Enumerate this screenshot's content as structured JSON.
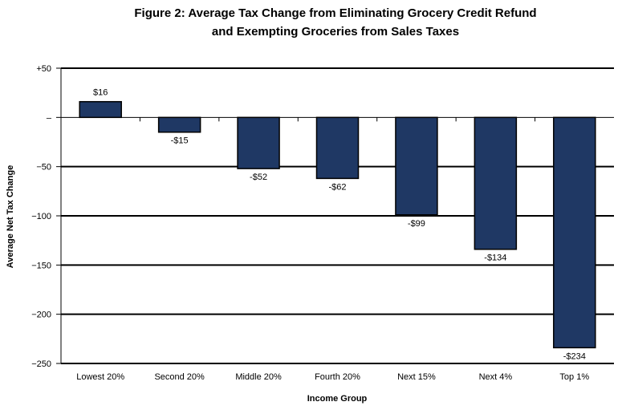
{
  "chart_data": {
    "type": "bar",
    "title_lines": [
      "Figure 2: Average Tax Change from Eliminating Grocery Credit Refund",
      "and Exempting Groceries from Sales Taxes"
    ],
    "xlabel": "Income Group",
    "ylabel": "Average Net Tax Change",
    "categories": [
      "Lowest 20%",
      "Second 20%",
      "Middle 20%",
      "Fourth 20%",
      "Next 15%",
      "Next 4%",
      "Top 1%"
    ],
    "values": [
      16,
      -15,
      -52,
      -62,
      -99,
      -134,
      -234
    ],
    "data_labels": [
      "$16",
      "-$15",
      "-$52",
      "-$62",
      "-$99",
      "-$134",
      "-$234"
    ],
    "ylim": [
      -250,
      50
    ],
    "yticks": [
      50,
      0,
      -50,
      -100,
      -150,
      -200,
      -250
    ],
    "ytick_labels": [
      "+50",
      "–",
      "−50",
      "−100",
      "−150",
      "−200",
      "−250"
    ],
    "grid": true,
    "legend": "none",
    "bar_color": "#1f3864"
  }
}
